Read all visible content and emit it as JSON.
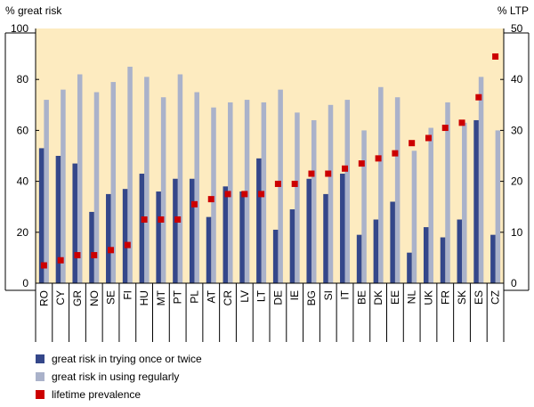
{
  "chart_data": {
    "type": "bar",
    "left_axis_label": "% great risk",
    "right_axis_label": "% LTP",
    "left_ylim": [
      0,
      100
    ],
    "right_ylim": [
      0,
      50
    ],
    "left_ticks": [
      0,
      20,
      40,
      60,
      80,
      100
    ],
    "right_ticks": [
      0,
      10,
      20,
      30,
      40,
      50
    ],
    "grid": false,
    "categories": [
      "RO",
      "CY",
      "GR",
      "NO",
      "SE",
      "FI",
      "HU",
      "MT",
      "PT",
      "PL",
      "AT",
      "CR",
      "LV",
      "LT",
      "DE",
      "IE",
      "BG",
      "SI",
      "IT",
      "BE",
      "DK",
      "EE",
      "NL",
      "UK",
      "FR",
      "SK",
      "ES",
      "CZ"
    ],
    "series": [
      {
        "name": "great risk in trying once or twice",
        "axis": "left",
        "color": "#34478a",
        "values": [
          53,
          50,
          47,
          28,
          35,
          37,
          43,
          36,
          41,
          41,
          26,
          38,
          36,
          49,
          21,
          29,
          41,
          35,
          43,
          19,
          25,
          32,
          12,
          22,
          18,
          25,
          64,
          19
        ]
      },
      {
        "name": "great risk in using regularly",
        "axis": "left",
        "color": "#aab2ca",
        "values": [
          72,
          76,
          82,
          75,
          79,
          85,
          81,
          73,
          82,
          75,
          69,
          71,
          72,
          71,
          76,
          67,
          64,
          70,
          72,
          60,
          77,
          73,
          52,
          61,
          71,
          63,
          81,
          60
        ]
      },
      {
        "name": "lifetime prevalence",
        "axis": "right",
        "color": "#cc0000",
        "values": [
          3.5,
          4.5,
          5.5,
          5.5,
          6.5,
          7.5,
          12.5,
          12.5,
          12.5,
          15.5,
          16.5,
          17.5,
          17.5,
          17.5,
          19.5,
          19.5,
          21.5,
          21.5,
          22.5,
          23.5,
          24.5,
          25.5,
          27.5,
          28.5,
          30.5,
          31.5,
          36.5,
          44.5
        ]
      }
    ],
    "legend_position": "bottom-left"
  },
  "colors": {
    "plot_background": "#fdebc0",
    "axis_line": "#000000"
  }
}
